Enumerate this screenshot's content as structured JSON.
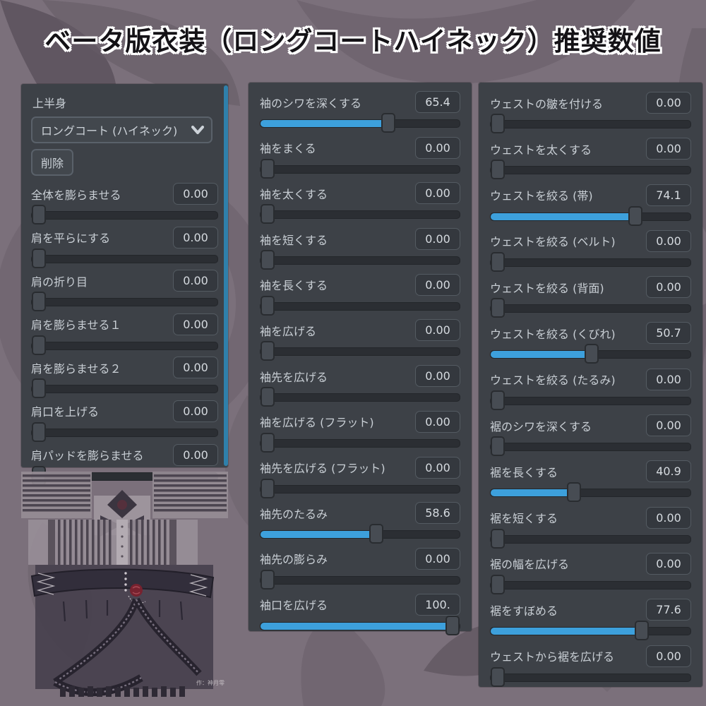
{
  "title": "ベータ版衣装（ロングコートハイネック）推奨数値",
  "colors": {
    "accent_blue": "#3da0dc",
    "scrollbar_blue": "#2f80ab",
    "panel_bg": "#3d4147",
    "background": "#7b707b"
  },
  "left_panel": {
    "section_label": "上半身",
    "dropdown_value": "ロングコート (ハイネック)",
    "chevron_icon": "chevron-down",
    "delete_button": "削除",
    "sliders": [
      {
        "label": "全体を膨らませる",
        "value": 0,
        "display": "0.00"
      },
      {
        "label": "肩を平らにする",
        "value": 0,
        "display": "0.00"
      },
      {
        "label": "肩の折り目",
        "value": 0,
        "display": "0.00"
      },
      {
        "label": "肩を膨らませる１",
        "value": 0,
        "display": "0.00"
      },
      {
        "label": "肩を膨らませる２",
        "value": 0,
        "display": "0.00"
      },
      {
        "label": "肩口を上げる",
        "value": 0,
        "display": "0.00"
      },
      {
        "label": "肩パッドを膨らませる",
        "value": 0,
        "display": "0.00"
      }
    ]
  },
  "middle_panel": {
    "sliders": [
      {
        "label": "袖のシワを深くする",
        "value": 65.4,
        "display": "65.4"
      },
      {
        "label": "袖をまくる",
        "value": 0,
        "display": "0.00"
      },
      {
        "label": "袖を太くする",
        "value": 0,
        "display": "0.00"
      },
      {
        "label": "袖を短くする",
        "value": 0,
        "display": "0.00"
      },
      {
        "label": "袖を長くする",
        "value": 0,
        "display": "0.00"
      },
      {
        "label": "袖を広げる",
        "value": 0,
        "display": "0.00"
      },
      {
        "label": "袖先を広げる",
        "value": 0,
        "display": "0.00"
      },
      {
        "label": "袖を広げる (フラット)",
        "value": 0,
        "display": "0.00"
      },
      {
        "label": "袖先を広げる (フラット)",
        "value": 0,
        "display": "0.00"
      },
      {
        "label": "袖先のたるみ",
        "value": 58.6,
        "display": "58.6"
      },
      {
        "label": "袖先の膨らみ",
        "value": 0,
        "display": "0.00"
      },
      {
        "label": "袖口を広げる",
        "value": 100,
        "display": "100."
      }
    ]
  },
  "right_panel": {
    "sliders": [
      {
        "label": "ウェストの皺を付ける",
        "value": 0,
        "display": "0.00"
      },
      {
        "label": "ウェストを太くする",
        "value": 0,
        "display": "0.00"
      },
      {
        "label": "ウェストを絞る (帯)",
        "value": 74.1,
        "display": "74.1"
      },
      {
        "label": "ウェストを絞る (ベルト)",
        "value": 0,
        "display": "0.00"
      },
      {
        "label": "ウェストを絞る (背面)",
        "value": 0,
        "display": "0.00"
      },
      {
        "label": "ウェストを絞る (くびれ)",
        "value": 50.7,
        "display": "50.7"
      },
      {
        "label": "ウェストを絞る (たるみ)",
        "value": 0,
        "display": "0.00"
      },
      {
        "label": "裾のシワを深くする",
        "value": 0,
        "display": "0.00"
      },
      {
        "label": "裾を長くする",
        "value": 40.9,
        "display": "40.9"
      },
      {
        "label": "裾を短くする",
        "value": 0,
        "display": "0.00"
      },
      {
        "label": "裾の幅を広げる",
        "value": 0,
        "display": "0.00"
      },
      {
        "label": "裾をすぼめる",
        "value": 77.6,
        "display": "77.6"
      },
      {
        "label": "ウェストから裾を広げる",
        "value": 0,
        "display": "0.00"
      }
    ]
  },
  "texture": {
    "caption": "作：神月零"
  }
}
